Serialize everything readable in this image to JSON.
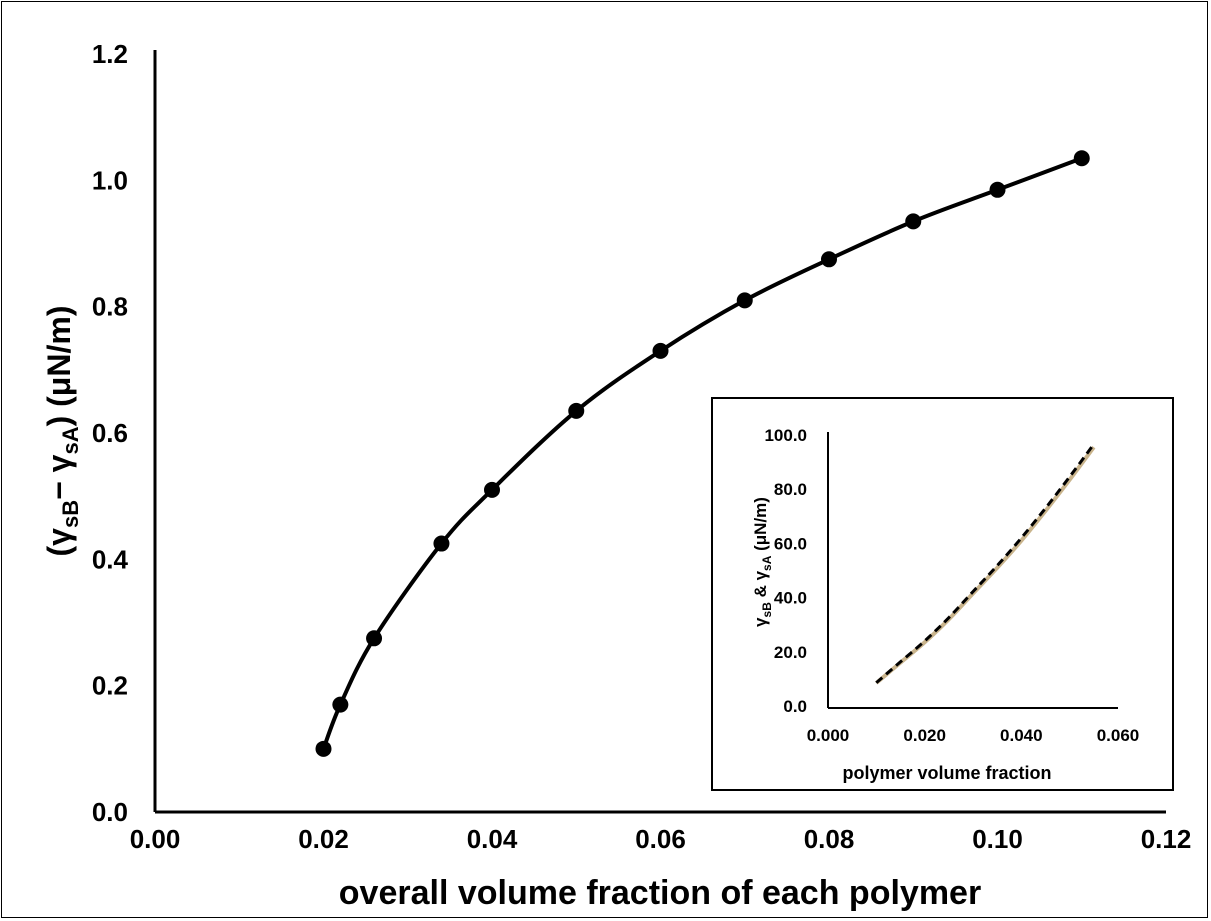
{
  "chart_data": [
    {
      "type": "line",
      "title": "",
      "xlabel": "overall volume fraction of each polymer",
      "ylabel": {
        "prefix": "(γ",
        "sub1": "sB",
        "mid": "− γ",
        "sub2": "sA",
        "suffix": ") (μN/m)"
      },
      "xlim": [
        0.0,
        0.12
      ],
      "ylim": [
        0.0,
        1.2
      ],
      "x_ticks": [
        "0.00",
        "0.02",
        "0.04",
        "0.06",
        "0.08",
        "0.10",
        "0.12"
      ],
      "y_ticks": [
        "0.0",
        "0.2",
        "0.4",
        "0.6",
        "0.8",
        "1.0",
        "1.2"
      ],
      "grid": false,
      "legend": "none",
      "markers": true,
      "color": "#000000",
      "series": [
        {
          "x": [
            0.02,
            0.022,
            0.026,
            0.034,
            0.04,
            0.05,
            0.06,
            0.07,
            0.08,
            0.09,
            0.1,
            0.11
          ],
          "y": [
            0.1,
            0.17,
            0.275,
            0.425,
            0.51,
            0.635,
            0.73,
            0.81,
            0.875,
            0.935,
            0.985,
            1.035
          ]
        }
      ]
    },
    {
      "type": "line",
      "title": "",
      "xlabel": "polymer volume fraction",
      "ylabel": {
        "g1": "γ",
        "sub1": "sB",
        "amp": " & ",
        "g2": "γ",
        "sub2": "sA",
        "suffix": " (μN/m)"
      },
      "xlim": [
        0.0,
        0.06
      ],
      "ylim": [
        0.0,
        100.0
      ],
      "x_ticks": [
        "0.000",
        "0.020",
        "0.040",
        "0.060"
      ],
      "y_ticks": [
        "0.0",
        "20.0",
        "40.0",
        "60.0",
        "80.0",
        "100.0"
      ],
      "grid": false,
      "legend": "none",
      "series": [
        {
          "style": "solid",
          "color": "#c9b48c",
          "x": [
            0.01,
            0.015,
            0.02,
            0.025,
            0.03,
            0.035,
            0.04,
            0.045,
            0.05,
            0.055
          ],
          "y": [
            8.5,
            16.0,
            23.5,
            32.0,
            41.5,
            51.0,
            61.0,
            72.0,
            83.5,
            95.5
          ]
        },
        {
          "style": "dashed",
          "color": "#000000",
          "x": [
            0.01,
            0.015,
            0.02,
            0.025,
            0.03,
            0.035,
            0.04,
            0.045,
            0.05,
            0.055
          ],
          "y": [
            8.6,
            16.3,
            24.0,
            32.6,
            42.2,
            51.8,
            62.0,
            73.0,
            84.6,
            96.6
          ]
        }
      ]
    }
  ]
}
